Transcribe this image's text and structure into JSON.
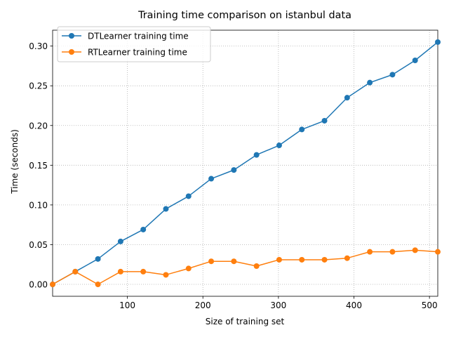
{
  "chart_data": {
    "type": "line",
    "title": "Training time comparison on istanbul data",
    "xlabel": "Size of training set",
    "ylabel": "Time (seconds)",
    "xlim": [
      1,
      511
    ],
    "ylim": [
      -0.015,
      0.32
    ],
    "xticks": [
      100,
      200,
      300,
      400,
      500
    ],
    "xtick_labels": [
      "100",
      "200",
      "300",
      "400",
      "500"
    ],
    "yticks": [
      0.0,
      0.05,
      0.1,
      0.15,
      0.2,
      0.25,
      0.3
    ],
    "ytick_labels": [
      "0.00",
      "0.05",
      "0.10",
      "0.15",
      "0.20",
      "0.25",
      "0.30"
    ],
    "grid": true,
    "legend_position": "top-left",
    "x": [
      1,
      31,
      61,
      91,
      121,
      151,
      181,
      211,
      241,
      271,
      301,
      331,
      361,
      391,
      421,
      451,
      481,
      511
    ],
    "series": [
      {
        "name": "DTLearner training time",
        "color": "#1f77b4",
        "values": [
          0.0,
          0.016,
          0.032,
          0.054,
          0.069,
          0.095,
          0.111,
          0.133,
          0.144,
          0.163,
          0.175,
          0.195,
          0.206,
          0.235,
          0.254,
          0.264,
          0.282,
          0.305
        ]
      },
      {
        "name": "RTLearner training time",
        "color": "#ff7f0e",
        "values": [
          0.0,
          0.016,
          0.0,
          0.016,
          0.016,
          0.012,
          0.02,
          0.029,
          0.029,
          0.023,
          0.031,
          0.031,
          0.031,
          0.033,
          0.041,
          0.041,
          0.043,
          0.041
        ]
      }
    ]
  }
}
